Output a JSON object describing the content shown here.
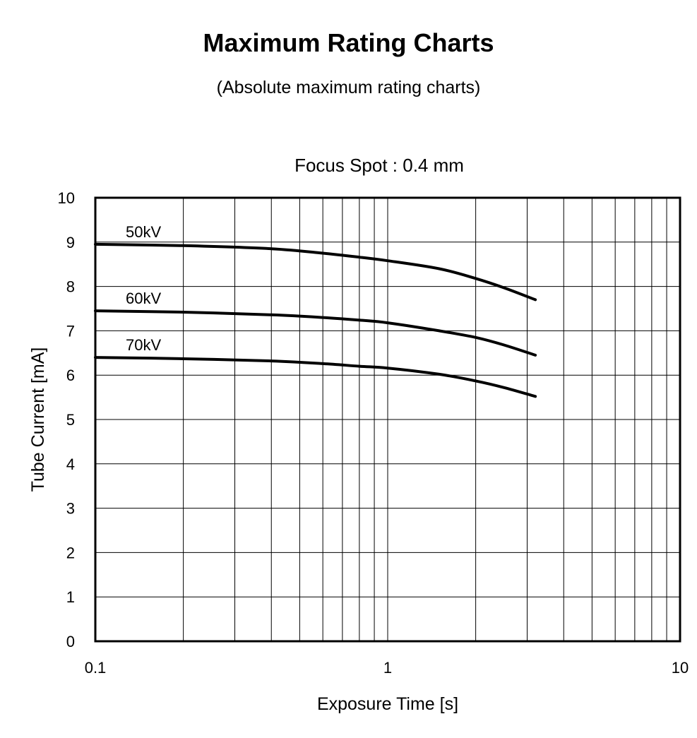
{
  "header": {
    "title": "Maximum Rating Charts",
    "subtitle": "(Absolute maximum rating charts)"
  },
  "chart_data": {
    "type": "line",
    "title": "Focus Spot : 0.4 mm",
    "xlabel": "Exposure Time [s]",
    "ylabel": "Tube Current [mA]",
    "xscale": "log",
    "xlim": [
      0.1,
      10
    ],
    "ylim": [
      0,
      10
    ],
    "x_tick_labels": [
      "0.1",
      "1",
      "10"
    ],
    "y_tick_labels": [
      "0",
      "1",
      "2",
      "3",
      "4",
      "5",
      "6",
      "7",
      "8",
      "9",
      "10"
    ],
    "grid": true,
    "series": [
      {
        "name": "50kV",
        "x": [
          0.1,
          0.2,
          0.4,
          0.6,
          0.8,
          1.0,
          1.5,
          2.0,
          2.5,
          3.2
        ],
        "y": [
          8.95,
          8.92,
          8.85,
          8.75,
          8.66,
          8.58,
          8.4,
          8.18,
          7.97,
          7.7
        ]
      },
      {
        "name": "60kV",
        "x": [
          0.1,
          0.2,
          0.4,
          0.6,
          0.8,
          1.0,
          1.5,
          2.0,
          2.5,
          3.2
        ],
        "y": [
          7.45,
          7.42,
          7.36,
          7.3,
          7.24,
          7.18,
          7.0,
          6.85,
          6.68,
          6.45
        ]
      },
      {
        "name": "70kV",
        "x": [
          0.1,
          0.2,
          0.4,
          0.6,
          0.8,
          1.0,
          1.5,
          2.0,
          2.5,
          3.2
        ],
        "y": [
          6.4,
          6.37,
          6.32,
          6.26,
          6.2,
          6.16,
          6.02,
          5.87,
          5.72,
          5.52
        ]
      }
    ]
  }
}
